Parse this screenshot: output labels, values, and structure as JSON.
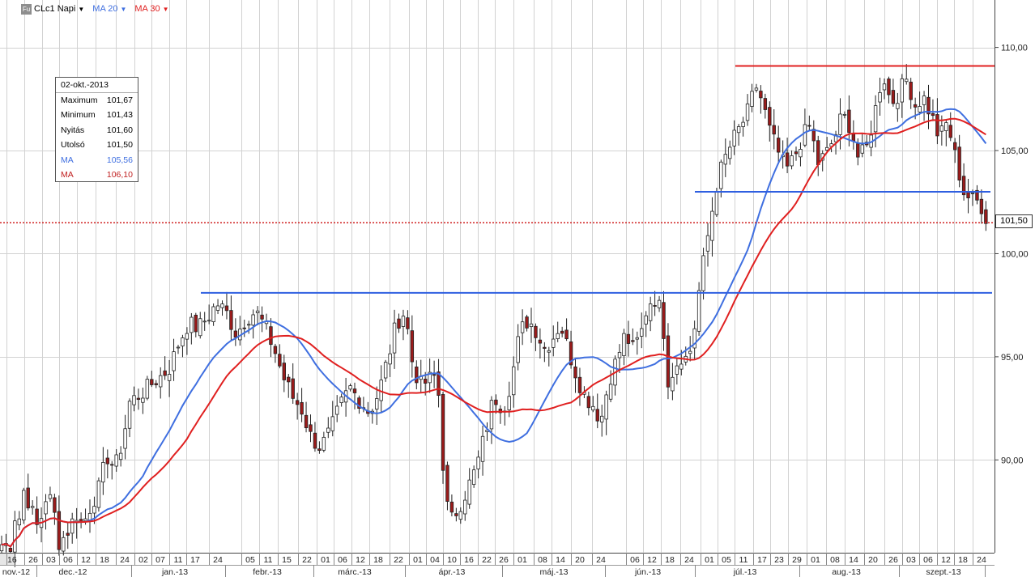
{
  "toolbar": {
    "badge": "Fu",
    "symbol_label": "CLc1 Napi",
    "ma20_label": "MA 20",
    "ma30_label": "MA 30",
    "ma20_color": "#3f6fe0",
    "ma30_color": "#e02020"
  },
  "infobox": {
    "date": "02-okt.-2013",
    "rows": [
      {
        "label": "Maximum",
        "value": "101,67"
      },
      {
        "label": "Minimum",
        "value": "101,43"
      },
      {
        "label": "Nyitás",
        "value": "101,60"
      },
      {
        "label": "Utolsó",
        "value": "101,50"
      },
      {
        "label": "MA",
        "value": "105,56",
        "color": "#3f6fe0"
      },
      {
        "label": "MA",
        "value": "106,10",
        "color": "#c02020"
      }
    ]
  },
  "last_price": {
    "label": "101,50",
    "value": 101.5
  },
  "chart_data": {
    "type": "candlestick",
    "ylim": [
      85.5,
      112.3
    ],
    "y_ticks": [
      {
        "value": 90,
        "label": "90,00"
      },
      {
        "value": 95,
        "label": "95,00"
      },
      {
        "value": 100,
        "label": "100,00"
      },
      {
        "value": 105,
        "label": "105,00"
      },
      {
        "value": 110,
        "label": "110,00"
      }
    ],
    "day_labels": [
      "16",
      "26",
      "03",
      "06",
      "12",
      "18",
      "24",
      "02",
      "07",
      "11",
      "17",
      "24",
      "05",
      "11",
      "15",
      "22",
      "01",
      "06",
      "12",
      "18",
      "22",
      "01",
      "04",
      "10",
      "16",
      "22",
      "26",
      "01",
      "08",
      "14",
      "20",
      "24",
      "06",
      "12",
      "18",
      "24",
      "01",
      "05",
      "11",
      "17",
      "23",
      "29",
      "01",
      "08",
      "14",
      "20",
      "26",
      "03",
      "06",
      "12",
      "18",
      "24"
    ],
    "month_labels": [
      "nov.-12",
      "dec.-12",
      "jan.-13",
      "febr.-13",
      "márc.-13",
      "ápr.-13",
      "máj.-13",
      "jún.-13",
      "júl.-13",
      "aug.-13",
      "szept.-13"
    ],
    "anchors": [
      [
        16,
        85.9
      ],
      [
        17,
        87.5
      ],
      [
        20,
        87.0
      ],
      [
        26,
        87.3
      ],
      [
        30,
        88.8
      ],
      [
        35,
        88.0
      ],
      [
        42,
        87.2
      ],
      [
        48,
        86.5
      ],
      [
        55,
        88.2
      ],
      [
        65,
        88.0
      ],
      [
        72,
        86.0
      ],
      [
        80,
        86.3
      ],
      [
        88,
        86.9
      ],
      [
        95,
        87.4
      ],
      [
        102,
        86.8
      ],
      [
        112,
        87.8
      ],
      [
        122,
        88.6
      ],
      [
        132,
        90.2
      ],
      [
        142,
        89.6
      ],
      [
        152,
        91.0
      ],
      [
        160,
        92.8
      ],
      [
        170,
        93.1
      ],
      [
        180,
        93.4
      ],
      [
        190,
        93.8
      ],
      [
        200,
        94.1
      ],
      [
        210,
        94.5
      ],
      [
        220,
        95.6
      ],
      [
        232,
        96.6
      ],
      [
        245,
        96.4
      ],
      [
        258,
        97.0
      ],
      [
        268,
        97.6
      ],
      [
        280,
        97.1
      ],
      [
        292,
        96.1
      ],
      [
        304,
        96.9
      ],
      [
        316,
        97.2
      ],
      [
        328,
        96.4
      ],
      [
        340,
        95.2
      ],
      [
        350,
        94.0
      ],
      [
        362,
        93.0
      ],
      [
        372,
        92.5
      ],
      [
        384,
        91.1
      ],
      [
        396,
        90.6
      ],
      [
        408,
        91.4
      ],
      [
        420,
        92.6
      ],
      [
        432,
        93.5
      ],
      [
        444,
        92.9
      ],
      [
        456,
        92.3
      ],
      [
        468,
        93.3
      ],
      [
        480,
        95.1
      ],
      [
        490,
        96.7
      ],
      [
        500,
        97.2
      ],
      [
        510,
        94.5
      ],
      [
        520,
        93.6
      ],
      [
        530,
        93.9
      ],
      [
        540,
        94.1
      ],
      [
        550,
        88.0
      ],
      [
        558,
        87.1
      ],
      [
        566,
        87.7
      ],
      [
        576,
        88.5
      ],
      [
        588,
        89.6
      ],
      [
        598,
        91.1
      ],
      [
        610,
        93.1
      ],
      [
        622,
        92.5
      ],
      [
        632,
        94.0
      ],
      [
        642,
        96.2
      ],
      [
        652,
        96.8
      ],
      [
        662,
        96.3
      ],
      [
        672,
        95.4
      ],
      [
        682,
        95.9
      ],
      [
        692,
        96.6
      ],
      [
        702,
        95.3
      ],
      [
        712,
        94.1
      ],
      [
        722,
        93.1
      ],
      [
        732,
        92.7
      ],
      [
        742,
        91.9
      ],
      [
        752,
        93.9
      ],
      [
        762,
        94.9
      ],
      [
        772,
        96.1
      ],
      [
        782,
        95.3
      ],
      [
        792,
        96.2
      ],
      [
        800,
        97.6
      ],
      [
        810,
        97.9
      ],
      [
        818,
        96.9
      ],
      [
        825,
        93.9
      ],
      [
        832,
        94.4
      ],
      [
        840,
        95.1
      ],
      [
        848,
        94.9
      ],
      [
        855,
        95.6
      ],
      [
        862,
        97.9
      ],
      [
        870,
        99.9
      ],
      [
        878,
        101.8
      ],
      [
        886,
        103.6
      ],
      [
        895,
        104.6
      ],
      [
        905,
        105.5
      ],
      [
        915,
        106.2
      ],
      [
        925,
        107.0
      ],
      [
        933,
        108.2
      ],
      [
        941,
        107.4
      ],
      [
        950,
        106.0
      ],
      [
        960,
        105.0
      ],
      [
        970,
        104.0
      ],
      [
        980,
        104.6
      ],
      [
        990,
        105.6
      ],
      [
        1000,
        106.2
      ],
      [
        1010,
        104.4
      ],
      [
        1020,
        104.8
      ],
      [
        1030,
        105.6
      ],
      [
        1040,
        106.7
      ],
      [
        1050,
        106.2
      ],
      [
        1060,
        104.6
      ],
      [
        1070,
        105.1
      ],
      [
        1080,
        106.8
      ],
      [
        1090,
        108.8
      ],
      [
        1100,
        107.3
      ],
      [
        1110,
        107.8
      ],
      [
        1120,
        108.5
      ],
      [
        1130,
        107.2
      ],
      [
        1140,
        107.6
      ],
      [
        1150,
        106.7
      ],
      [
        1160,
        105.6
      ],
      [
        1170,
        106.4
      ],
      [
        1180,
        104.6
      ],
      [
        1190,
        103.0
      ],
      [
        1200,
        102.6
      ],
      [
        1210,
        102.5
      ],
      [
        1220,
        101.5
      ]
    ],
    "levels": [
      {
        "value": 109.1,
        "color": "#e02020"
      },
      {
        "value": 103.0,
        "color": "#2f5fe0"
      },
      {
        "value": 98.1,
        "color": "#2f5fe0"
      },
      {
        "value": 101.5,
        "color": "#d02020",
        "dotted": true
      }
    ]
  }
}
